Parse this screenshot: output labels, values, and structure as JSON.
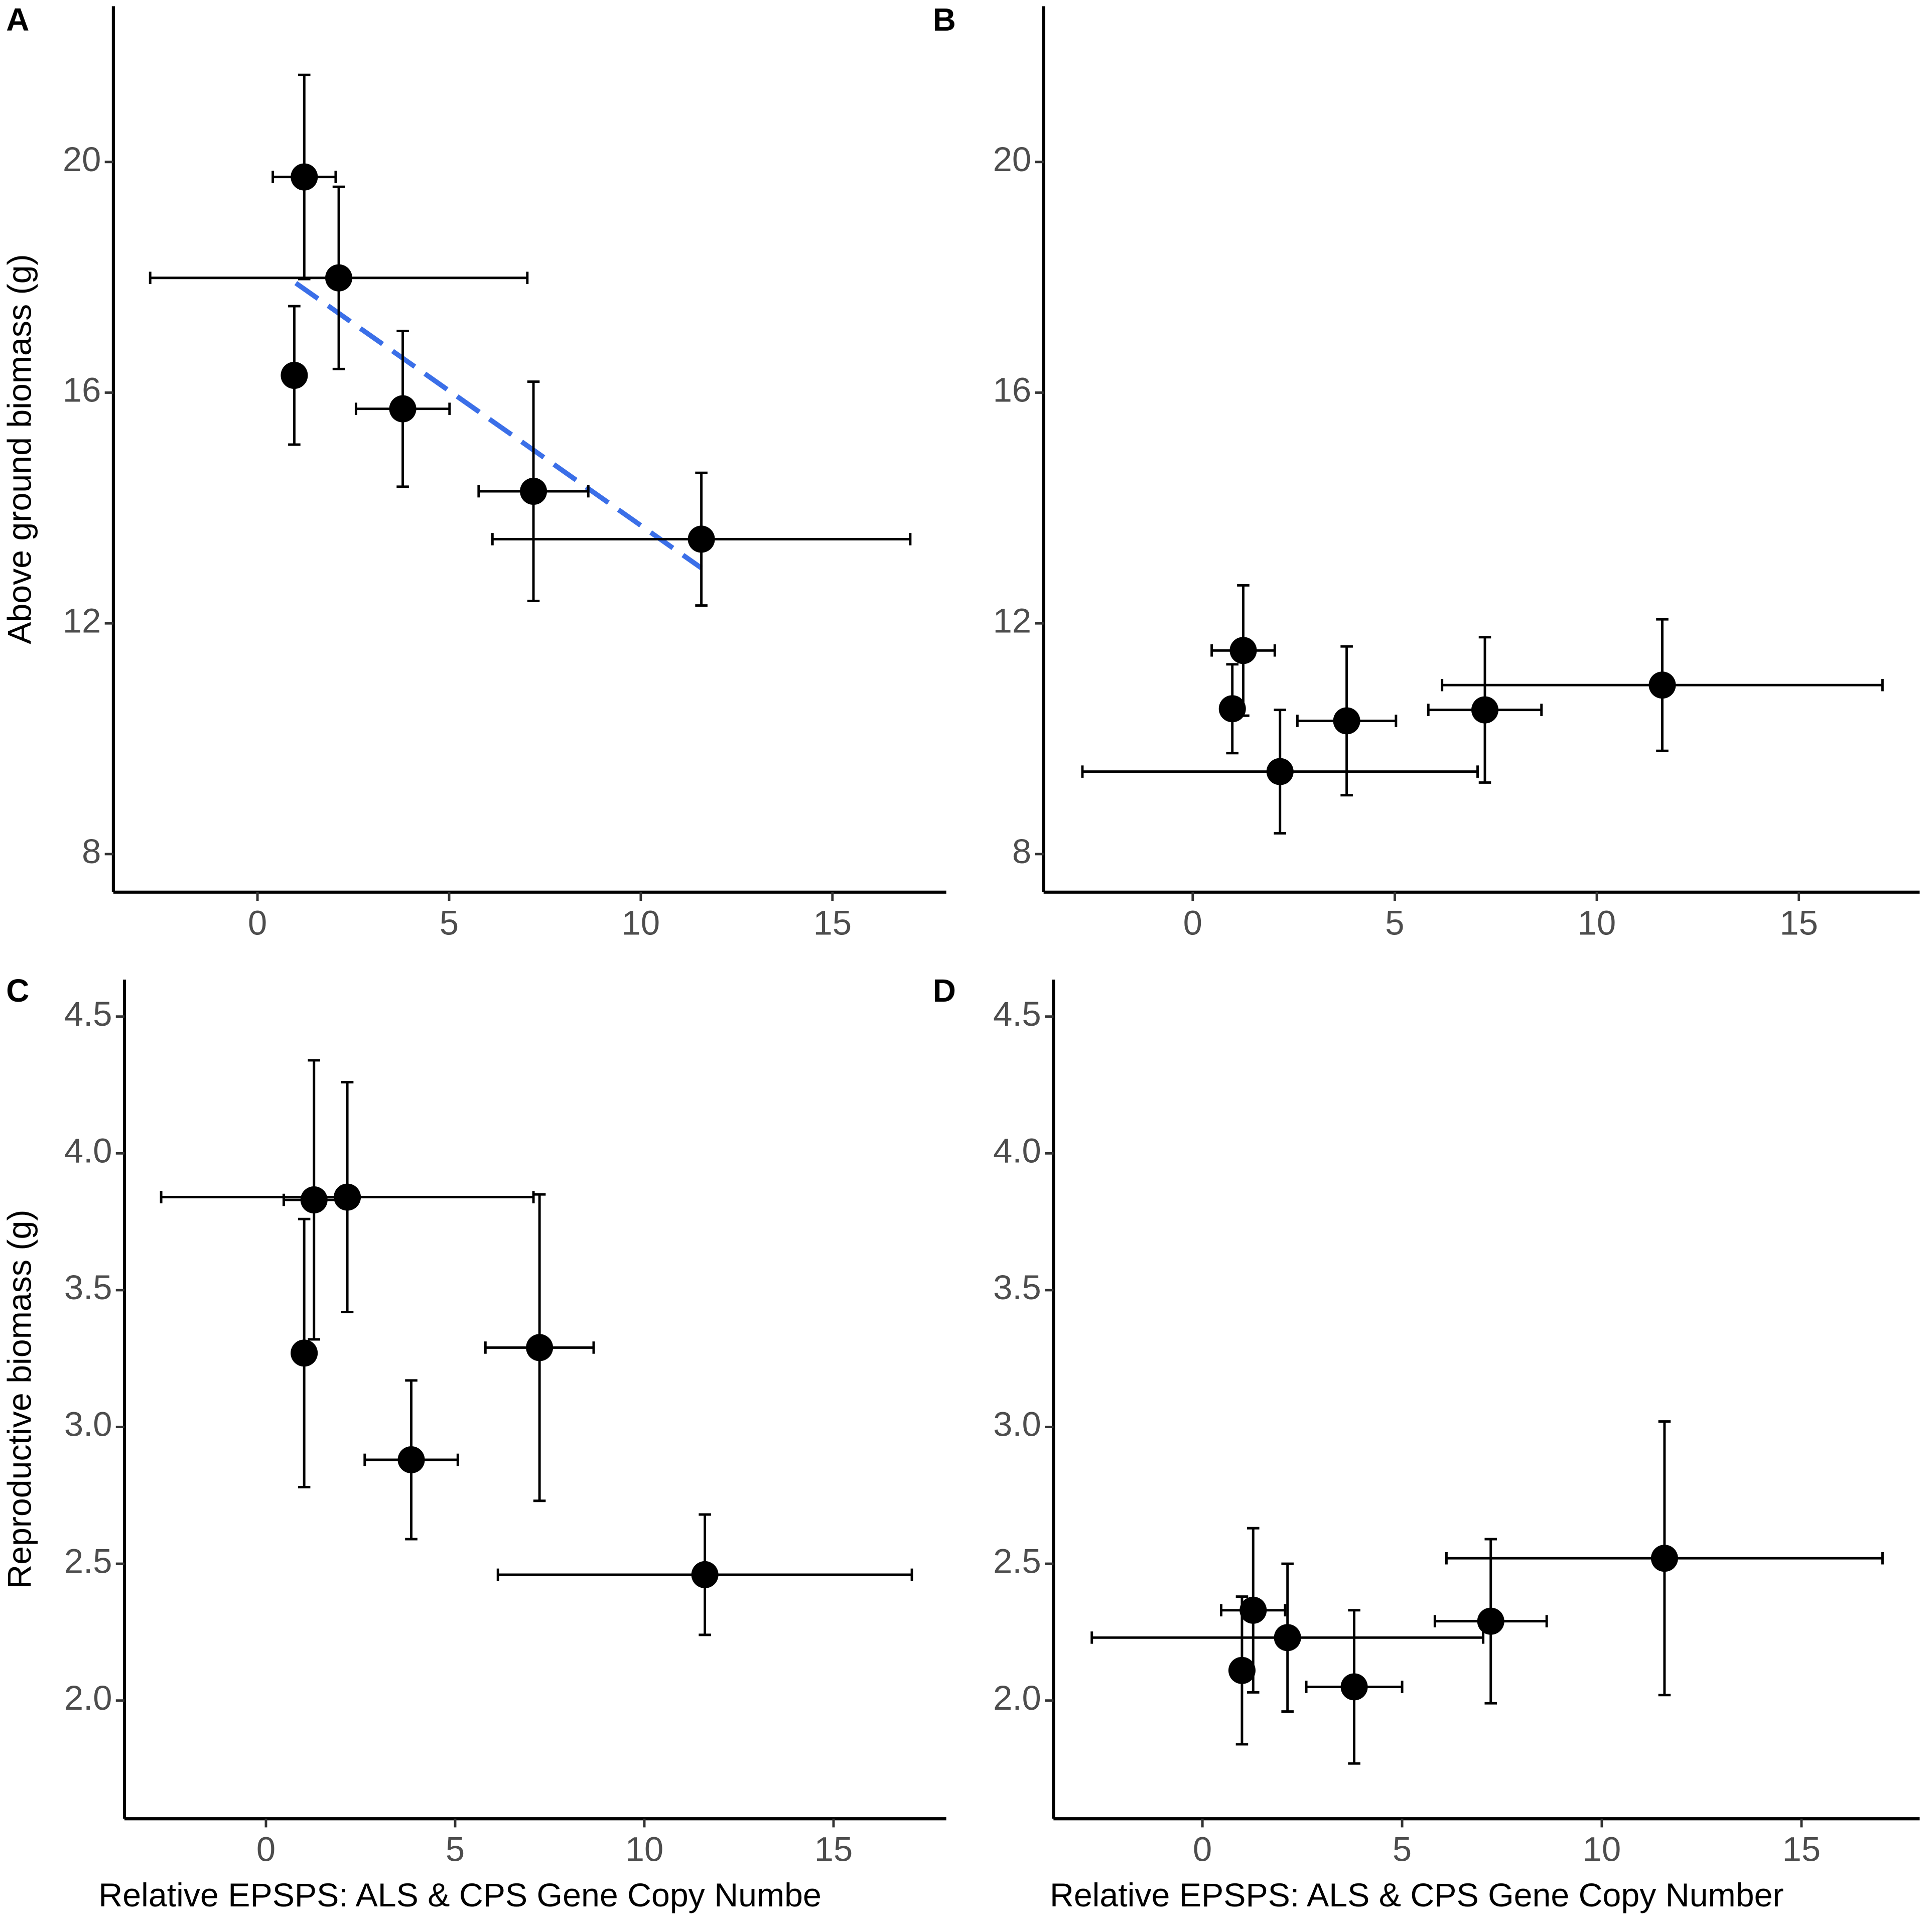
{
  "chart_data": [
    {
      "type": "scatter",
      "label": "A",
      "ylabel": "Above ground biomass (g)",
      "x": [
        1.22,
        2.12,
        0.96,
        3.79,
        7.2,
        11.58
      ],
      "y": [
        19.74,
        17.99,
        16.3,
        15.72,
        14.29,
        13.46
      ],
      "x_err": [
        0.82,
        4.92,
        null,
        1.22,
        1.43,
        5.45
      ],
      "y_err": [
        1.77,
        1.58,
        1.2,
        1.35,
        1.9,
        1.15
      ],
      "trend": {
        "x": [
          1.0,
          11.58
        ],
        "y": [
          17.9,
          12.96
        ],
        "color": "#3b6fe8"
      },
      "color": "#000000",
      "xlim": [
        -3.76,
        17.97
      ],
      "ylim": [
        7.34,
        22.7
      ],
      "xticks": [
        0,
        5,
        10,
        15
      ],
      "yticks": [
        8,
        12,
        16,
        20
      ]
    },
    {
      "type": "scatter",
      "label": "B",
      "x": [
        1.25,
        0.98,
        2.16,
        3.81,
        7.23,
        11.62
      ],
      "y": [
        11.53,
        10.52,
        9.43,
        10.31,
        10.5,
        10.93
      ],
      "x_err": [
        0.78,
        null,
        4.89,
        1.22,
        1.4,
        5.45
      ],
      "y_err": [
        1.13,
        0.77,
        1.07,
        1.29,
        1.26,
        1.14
      ],
      "color": "#000000",
      "xlim": [
        -3.69,
        17.99
      ],
      "ylim": [
        7.34,
        22.7
      ],
      "xticks": [
        0,
        5,
        10,
        15
      ],
      "yticks": [
        8,
        12,
        16,
        20
      ]
    },
    {
      "type": "scatter",
      "label": "C",
      "ylabel": "Reproductive biomass (g)",
      "xlabel": "Relative EPSPS: ALS & CPS Gene Copy Numbe",
      "x": [
        1.01,
        1.27,
        2.15,
        3.84,
        7.23,
        11.6
      ],
      "y": [
        3.27,
        3.83,
        3.84,
        2.88,
        3.29,
        2.46
      ],
      "x_err": [
        null,
        0.8,
        4.92,
        1.23,
        1.43,
        5.47
      ],
      "y_err": [
        0.49,
        0.51,
        0.42,
        0.29,
        0.56,
        0.22
      ],
      "color": "#000000",
      "xlim": [
        -3.74,
        17.98
      ],
      "ylim": [
        1.568,
        4.635
      ],
      "xticks": [
        0,
        5,
        10,
        15
      ],
      "yticks": [
        {
          "value": 2,
          "label": "2.0"
        },
        2.5,
        {
          "value": 3,
          "label": "3.0"
        },
        3.5,
        {
          "value": 4,
          "label": "4.0"
        },
        4.5
      ]
    },
    {
      "type": "scatter",
      "label": "D",
      "xlabel": "Relative EPSPS: ALS & CPS Gene Copy Number",
      "x": [
        0.99,
        1.27,
        2.13,
        3.8,
        7.22,
        11.57
      ],
      "y": [
        2.11,
        2.33,
        2.23,
        2.05,
        2.29,
        2.52
      ],
      "x_err": [
        null,
        0.8,
        4.9,
        1.2,
        1.4,
        5.46
      ],
      "y_err": [
        0.27,
        0.3,
        0.27,
        0.28,
        0.3,
        0.5
      ],
      "color": "#000000",
      "xlim": [
        -3.73,
        17.96
      ],
      "ylim": [
        1.568,
        4.635
      ],
      "xticks": [
        0,
        5,
        10,
        15
      ],
      "yticks": [
        {
          "value": 2,
          "label": "2.0"
        },
        2.5,
        {
          "value": 3,
          "label": "3.0"
        },
        3.5,
        {
          "value": 4,
          "label": "4.0"
        },
        4.5
      ]
    }
  ]
}
